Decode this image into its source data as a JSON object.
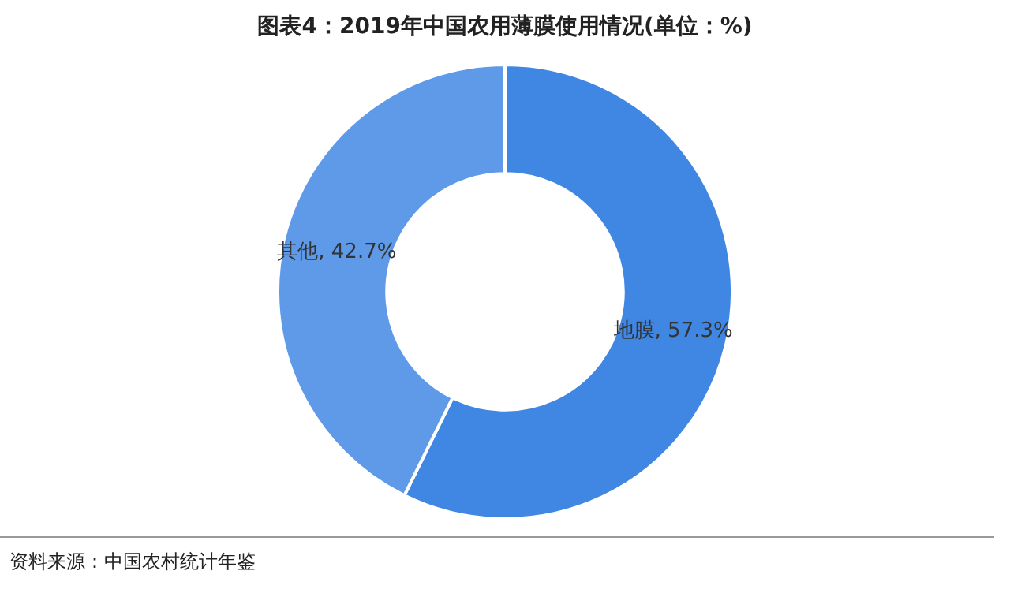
{
  "chart_data": {
    "type": "donut",
    "title": "图表4：2019年中国农用薄膜使用情况(单位：%)",
    "categories": [
      "地膜",
      "其他"
    ],
    "values": [
      57.3,
      42.7
    ],
    "colors": [
      "#3f87e3",
      "#5e9ae8"
    ],
    "value_labels": [
      "57.3%",
      "42.7%"
    ],
    "legend": false,
    "annotations": [
      "资料来源：中国农村统计年鉴"
    ]
  }
}
